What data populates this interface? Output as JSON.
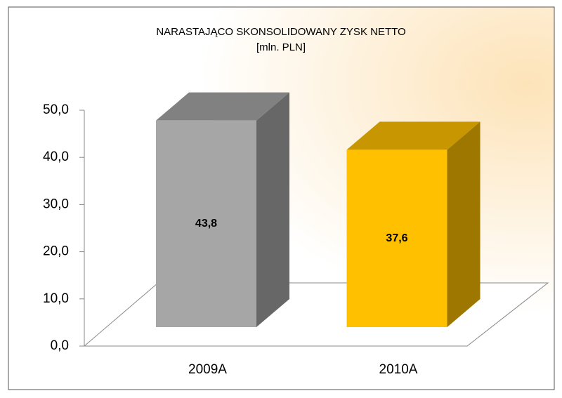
{
  "chart_data": {
    "type": "bar3d",
    "title": "NARASTAJĄCO SKONSOLIDOWANY ZYSK NETTO",
    "subtitle": "[mln. PLN]",
    "categories": [
      "2009A",
      "2010A"
    ],
    "values": [
      43.8,
      37.6
    ],
    "value_labels": [
      "43,8",
      "37,6"
    ],
    "colors": [
      "#a6a6a6",
      "#ffc000"
    ],
    "ylim": [
      0,
      50
    ],
    "yticks": [
      {
        "value": 0,
        "label": "0,0"
      },
      {
        "value": 10,
        "label": "10,0"
      },
      {
        "value": 20,
        "label": "20,0"
      },
      {
        "value": 30,
        "label": "30,0"
      },
      {
        "value": 40,
        "label": "40,0"
      },
      {
        "value": 50,
        "label": "50,0"
      }
    ]
  }
}
